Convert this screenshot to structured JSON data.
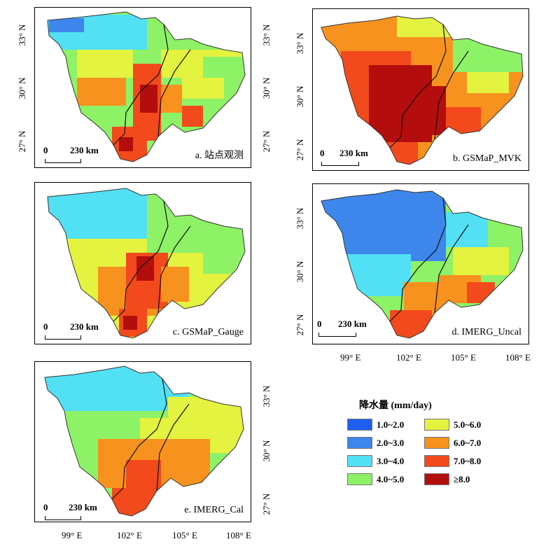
{
  "panels": [
    {
      "id": "a",
      "label": "a. 站点观测"
    },
    {
      "id": "b",
      "label": "b. GSMaP_MVK"
    },
    {
      "id": "c",
      "label": "c. GSMaP_Gauge"
    },
    {
      "id": "d",
      "label": "d. IMERG_Uncal"
    },
    {
      "id": "e",
      "label": "e. IMERG_Cal"
    }
  ],
  "scale_bar": {
    "zero": "0",
    "distance": "230 km"
  },
  "lat_labels": [
    "33° N",
    "30° N",
    "27° N"
  ],
  "lon_labels": [
    "99° E",
    "102° E",
    "105° E",
    "108° E"
  ],
  "legend": {
    "title": "降水量 (mm/day)",
    "items": [
      {
        "label": "1.0~2.0",
        "color": "#1f5ff0"
      },
      {
        "label": "2.0~3.0",
        "color": "#3d86ec"
      },
      {
        "label": "3.0~4.0",
        "color": "#52e0f5"
      },
      {
        "label": "4.0~5.0",
        "color": "#8ef267"
      },
      {
        "label": "5.0~6.0",
        "color": "#e4f240"
      },
      {
        "label": "6.0~7.0",
        "color": "#f7921e"
      },
      {
        "label": "7.0~8.0",
        "color": "#f24a1c"
      },
      {
        "label": "≥8.0",
        "color": "#b30d0d"
      }
    ]
  }
}
